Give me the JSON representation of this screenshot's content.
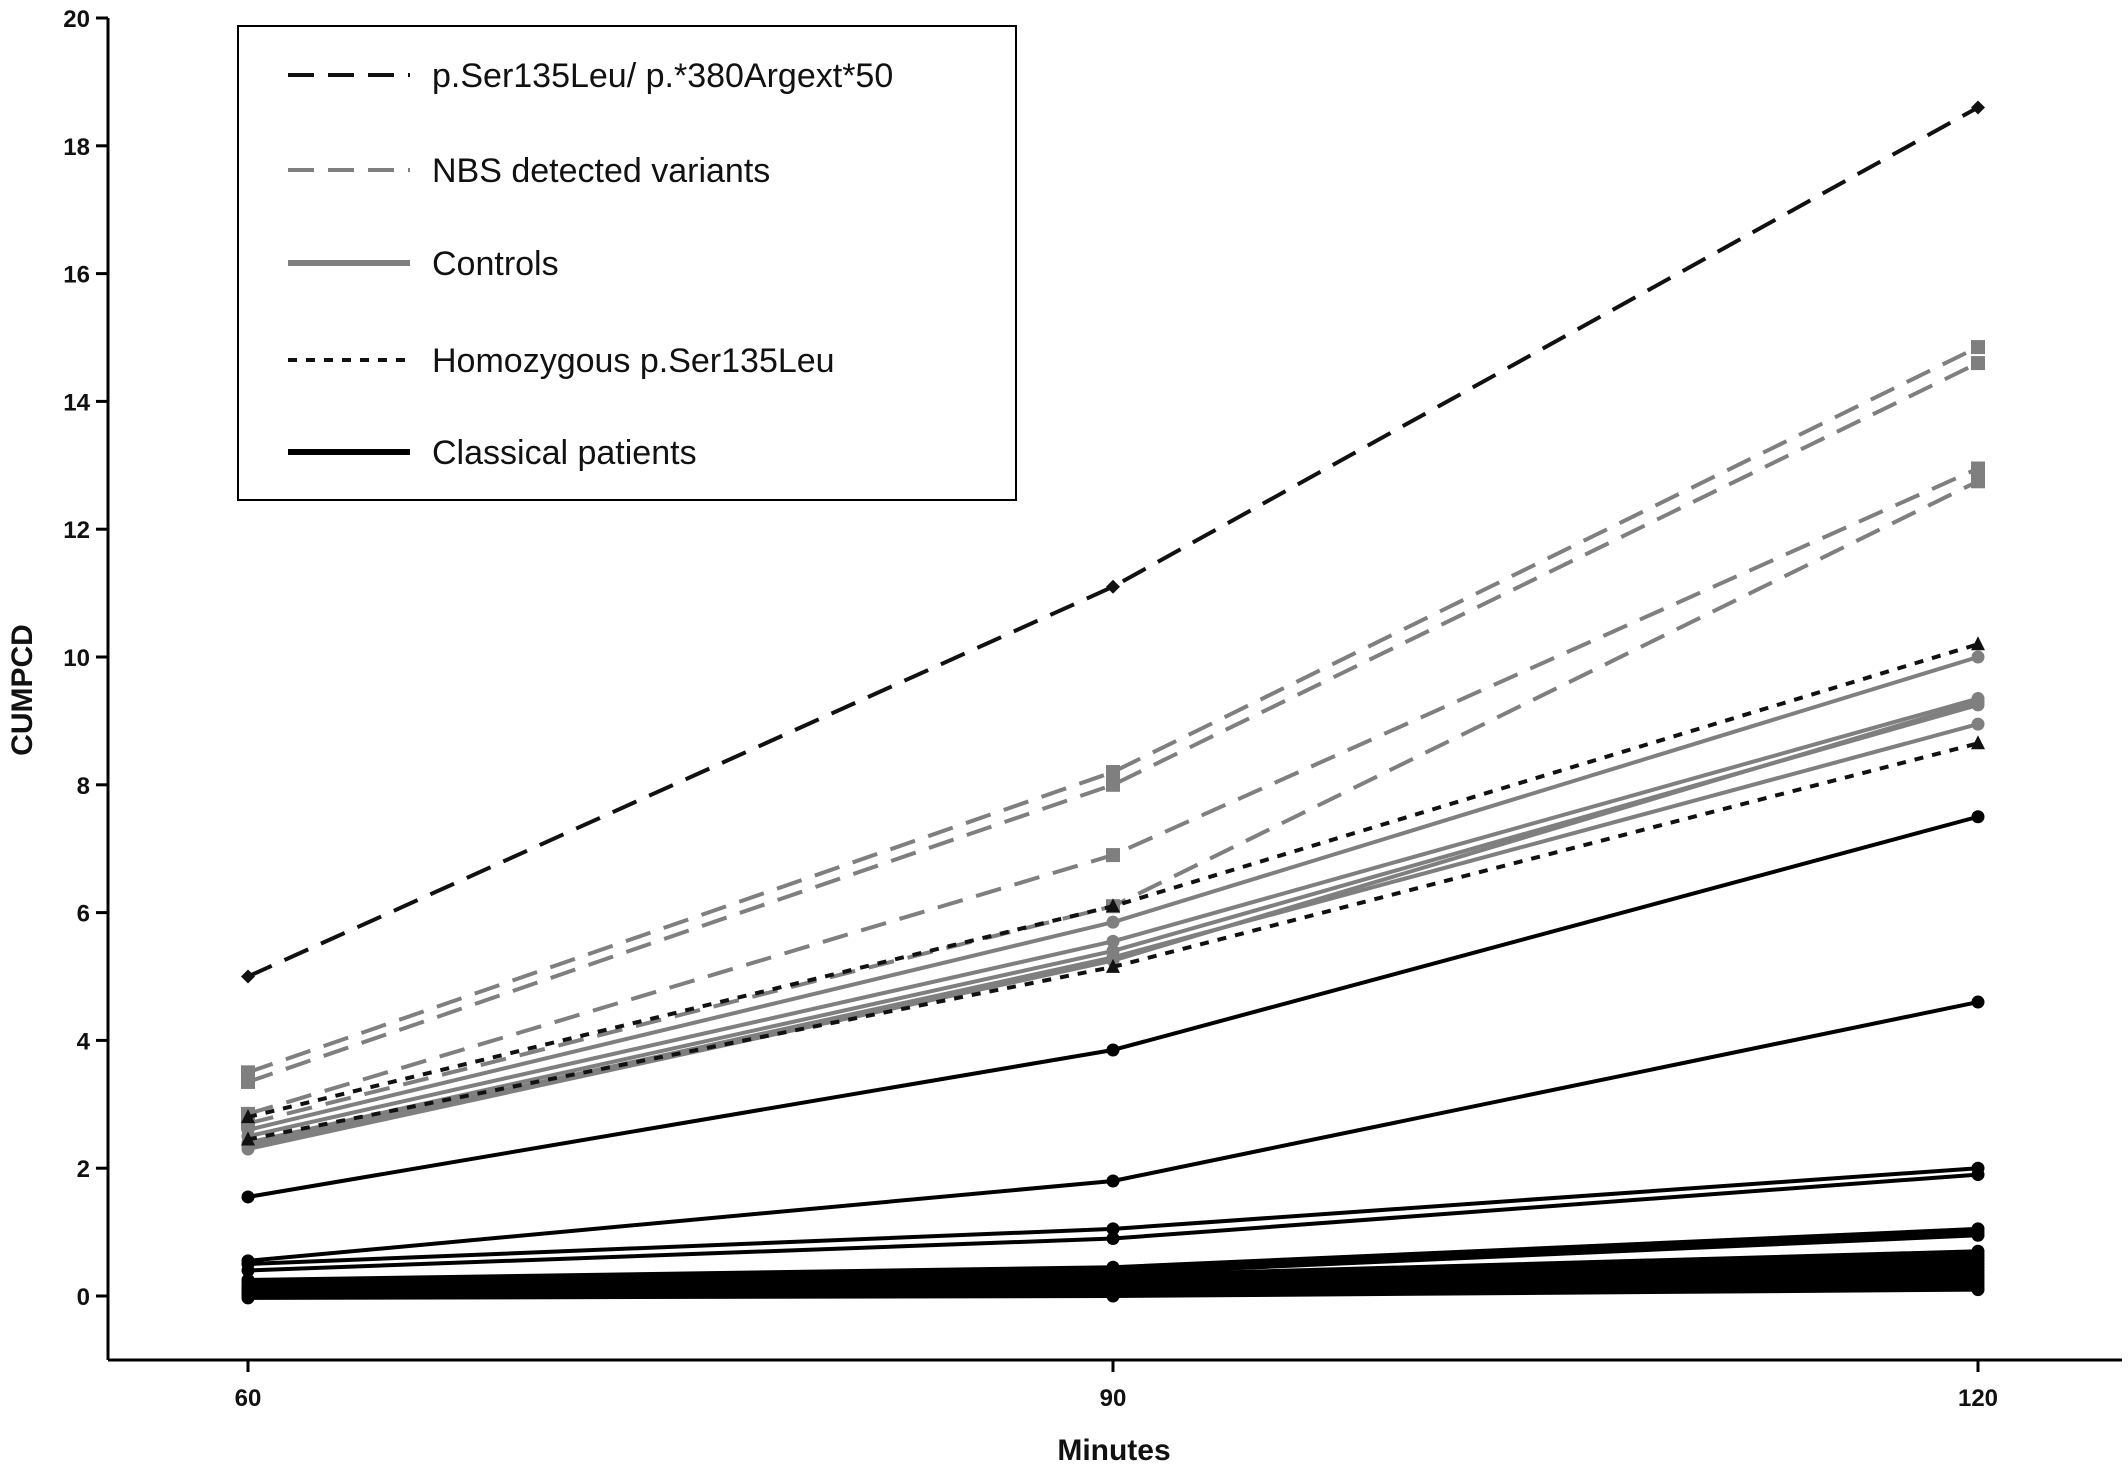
{
  "chart_data": {
    "type": "line",
    "xlabel": "Minutes",
    "ylabel": "CUMPCD",
    "x": [
      60,
      90,
      120
    ],
    "xlim": [
      56,
      122.5
    ],
    "ylim": [
      -1,
      20
    ],
    "yticks": [
      0,
      2,
      4,
      6,
      8,
      10,
      12,
      14,
      16,
      18,
      20
    ],
    "xticks": [
      60,
      90,
      120
    ],
    "legend_position": "top-left",
    "grid": false,
    "groups": [
      {
        "name": "p.Ser135Leu/ p.*380Argext*50",
        "color": "#111111",
        "line": "longdash",
        "marker": "diamond",
        "series": [
          {
            "values": [
              5.0,
              11.1,
              18.6
            ]
          }
        ]
      },
      {
        "name": "NBS detected variants",
        "color": "#7f7f7f",
        "line": "longdash",
        "marker": "square",
        "series": [
          {
            "values": [
              3.5,
              8.2,
              14.85
            ]
          },
          {
            "values": [
              3.35,
              8.0,
              14.6
            ]
          },
          {
            "values": [
              2.85,
              6.9,
              12.95
            ]
          },
          {
            "values": [
              2.7,
              6.1,
              12.75
            ]
          }
        ]
      },
      {
        "name": "Controls",
        "color": "#7f7f7f",
        "line": "solid",
        "marker": "circle",
        "series": [
          {
            "values": [
              2.6,
              5.85,
              10.0
            ]
          },
          {
            "values": [
              2.5,
              5.55,
              9.35
            ]
          },
          {
            "values": [
              2.4,
              5.4,
              9.25
            ]
          },
          {
            "values": [
              2.35,
              5.3,
              8.95
            ]
          },
          {
            "values": [
              2.3,
              5.25,
              9.3
            ]
          }
        ]
      },
      {
        "name": "Homozygous p.Ser135Leu",
        "color": "#111111",
        "line": "dotted",
        "marker": "triangle",
        "series": [
          {
            "values": [
              2.8,
              6.1,
              10.2
            ]
          },
          {
            "values": [
              2.45,
              5.15,
              8.65
            ]
          }
        ]
      },
      {
        "name": "Classical patients",
        "color": "#000000",
        "line": "solid",
        "marker": "circle",
        "series": [
          {
            "values": [
              1.55,
              3.85,
              7.5
            ]
          },
          {
            "values": [
              0.55,
              1.8,
              4.6
            ]
          },
          {
            "values": [
              0.5,
              1.05,
              2.0
            ]
          },
          {
            "values": [
              0.4,
              0.9,
              1.9
            ]
          },
          {
            "values": [
              0.25,
              0.45,
              1.05
            ]
          },
          {
            "values": [
              0.2,
              0.4,
              1.0
            ]
          },
          {
            "values": [
              0.15,
              0.35,
              0.95
            ]
          },
          {
            "values": [
              0.12,
              0.32,
              0.7
            ]
          },
          {
            "values": [
              0.1,
              0.28,
              0.65
            ]
          },
          {
            "values": [
              0.08,
              0.25,
              0.6
            ]
          },
          {
            "values": [
              0.06,
              0.22,
              0.55
            ]
          },
          {
            "values": [
              0.05,
              0.2,
              0.5
            ]
          },
          {
            "values": [
              0.04,
              0.18,
              0.45
            ]
          },
          {
            "values": [
              0.03,
              0.15,
              0.4
            ]
          },
          {
            "values": [
              0.02,
              0.12,
              0.35
            ]
          },
          {
            "values": [
              0.01,
              0.1,
              0.3
            ]
          },
          {
            "values": [
              0.0,
              0.08,
              0.25
            ]
          },
          {
            "values": [
              0.0,
              0.05,
              0.2
            ]
          },
          {
            "values": [
              -0.02,
              0.03,
              0.15
            ]
          },
          {
            "values": [
              -0.03,
              0.0,
              0.1
            ]
          }
        ]
      }
    ]
  }
}
